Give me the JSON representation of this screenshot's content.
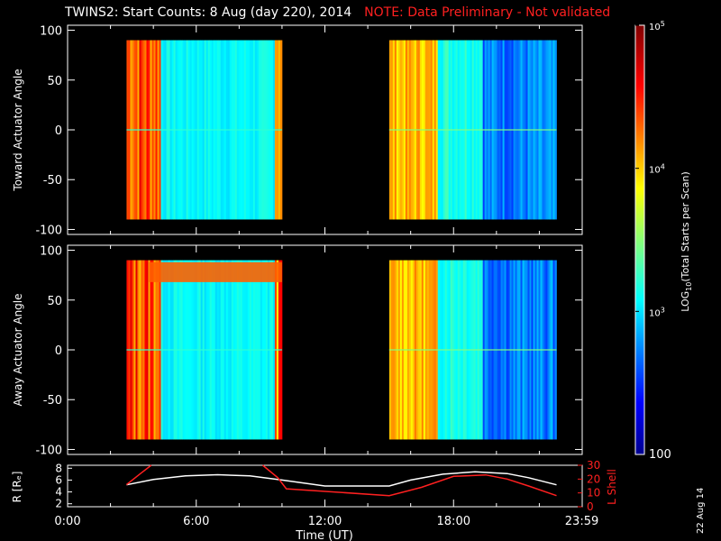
{
  "title": {
    "main": "TWINS2: Start Counts:  8 Aug (day 220), 2014",
    "note": "NOTE: Data Preliminary - Not validated"
  },
  "footer": {
    "date_stamp": "22 Aug 14"
  },
  "chart_data": [
    {
      "type": "heatmap",
      "name": "toward",
      "ylabel": "Toward Actuator Angle",
      "ylim": [
        -105,
        105
      ],
      "yticks": [
        "100",
        "50",
        "0",
        "-50",
        "-100"
      ],
      "x_unit": "hours UT",
      "xlim": [
        0,
        24
      ],
      "angle_range": [
        -90,
        90
      ],
      "segments": [
        {
          "t_start": 2.75,
          "t_end": 10.0
        },
        {
          "t_start": 15.0,
          "t_end": 22.8
        }
      ]
    },
    {
      "type": "heatmap",
      "name": "away",
      "ylabel": "Away Actuator Angle",
      "ylim": [
        -105,
        105
      ],
      "yticks": [
        "100",
        "50",
        "0",
        "-50",
        "-100"
      ],
      "x_unit": "hours UT",
      "xlim": [
        0,
        24
      ],
      "angle_range": [
        -90,
        90
      ],
      "segments": [
        {
          "t_start": 2.75,
          "t_end": 10.0
        },
        {
          "t_start": 15.0,
          "t_end": 22.8
        }
      ]
    },
    {
      "type": "line",
      "name": "orbit",
      "ylabel": "R [Rₑ]",
      "ylabel_right": "L Shell",
      "xlabel": "Time (UT)",
      "xtick_labels": [
        "0:00",
        "6:00",
        "12:00",
        "18:00",
        "23:59"
      ],
      "xtick_hours": [
        0,
        6,
        12,
        18,
        23.98
      ],
      "ylim_left": [
        1.5,
        8.5
      ],
      "ylim_right": [
        0,
        30
      ],
      "yticks_left": [
        "8",
        "6",
        "4",
        "2"
      ],
      "yticks_right": [
        "30",
        "20",
        "10",
        "0"
      ],
      "colors": {
        "R": "#ffffff",
        "L": "#ff2020"
      },
      "series": [
        {
          "axis": "left",
          "x": [
            2.75,
            4,
            5.5,
            7,
            8.5,
            10,
            12,
            14,
            15,
            16,
            17.5,
            19,
            20.5,
            21.5,
            22.8
          ],
          "y": [
            5.2,
            6.1,
            6.7,
            6.9,
            6.7,
            6.0,
            5.0,
            5.0,
            5.0,
            6.0,
            7.0,
            7.4,
            7.1,
            6.4,
            5.2
          ]
        },
        {
          "axis": "right",
          "x": [
            2.75,
            3.4,
            3.9
          ],
          "y": [
            16,
            24,
            30
          ]
        },
        {
          "axis": "right",
          "x": [
            9.1,
            9.8,
            10.2,
            15,
            16.5,
            18,
            19.5,
            20.5,
            21.5,
            22.8
          ],
          "y": [
            30,
            21,
            13,
            8,
            14,
            22,
            23,
            20,
            15,
            8
          ]
        }
      ]
    }
  ],
  "colorbar": {
    "label_log": "LOG",
    "label_sub": "10",
    "label_rest": "(Total Starts per Scan)",
    "tick_labels": [
      "10",
      "10",
      "10"
    ],
    "tick_exps": [
      "5",
      "4",
      "3"
    ],
    "bottom_label": "100",
    "range": [
      100,
      100000
    ]
  }
}
